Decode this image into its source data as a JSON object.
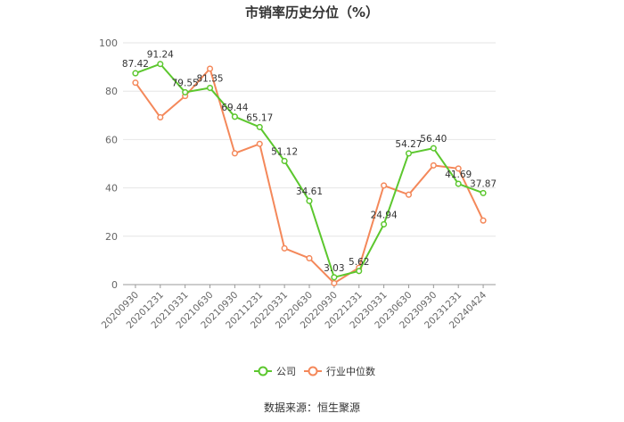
{
  "chart_data": {
    "type": "line",
    "title": "市销率历史分位（%）",
    "categories": [
      "20200930",
      "20201231",
      "20210331",
      "20210630",
      "20210930",
      "20211231",
      "20220331",
      "20220630",
      "20220930",
      "20221231",
      "20230331",
      "20230630",
      "20230930",
      "20231231",
      "20240424"
    ],
    "series": [
      {
        "name": "公司",
        "color": "#5cc72e",
        "values": [
          87.42,
          91.24,
          79.55,
          81.35,
          69.44,
          65.17,
          51.12,
          34.61,
          3.03,
          5.62,
          24.94,
          54.27,
          56.4,
          41.69,
          37.87
        ],
        "labels": [
          "87.42",
          "91.24",
          "79.55",
          "81.35",
          "69.44",
          "65.17",
          "51.12",
          "34.61",
          "3.03",
          "5.62",
          "24.94",
          "54.27",
          "56.40",
          "41.69",
          "37.87"
        ]
      },
      {
        "name": "行业中位数",
        "color": "#f4885a",
        "values": [
          83.5,
          69.2,
          78.0,
          89.3,
          54.3,
          58.2,
          15.0,
          10.9,
          0.6,
          7.0,
          41.0,
          37.2,
          49.3,
          48.0,
          26.5
        ]
      }
    ],
    "yticks": [
      "0",
      "20",
      "40",
      "60",
      "80",
      "100"
    ],
    "ylim": [
      0,
      100
    ],
    "grid": true,
    "legend": "bottom-center"
  },
  "source": "数据来源：恒生聚源"
}
